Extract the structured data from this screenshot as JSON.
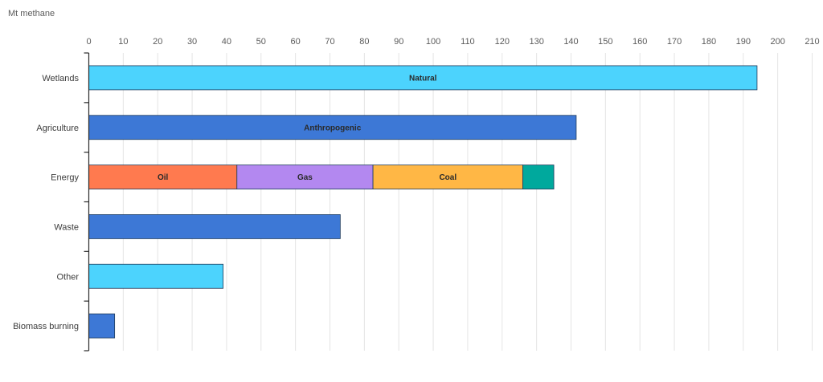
{
  "chart_data": {
    "type": "bar",
    "orientation": "horizontal",
    "stacked": true,
    "xlabel": "Mt methane",
    "xlim": [
      0,
      210
    ],
    "x_ticks": [
      0,
      10,
      20,
      30,
      40,
      50,
      60,
      70,
      80,
      90,
      100,
      110,
      120,
      130,
      140,
      150,
      160,
      170,
      180,
      190,
      200,
      210
    ],
    "grid": "vertical",
    "categories": [
      "Wetlands",
      "Agriculture",
      "Energy",
      "Waste",
      "Other",
      "Biomass burning"
    ],
    "bars": [
      {
        "category": "Wetlands",
        "segments": [
          {
            "label": "Natural",
            "value": 194,
            "color": "#4cd3fd"
          }
        ]
      },
      {
        "category": "Agriculture",
        "segments": [
          {
            "label": "Anthropogenic",
            "value": 141.5,
            "color": "#3d78d6"
          }
        ]
      },
      {
        "category": "Energy",
        "segments": [
          {
            "label": "Oil",
            "value": 43,
            "color": "#ff7a4f"
          },
          {
            "label": "Gas",
            "value": 39.5,
            "color": "#b388f0"
          },
          {
            "label": "Coal",
            "value": 43.5,
            "color": "#ffb745"
          },
          {
            "label": "",
            "value": 9,
            "color": "#00a99d"
          }
        ]
      },
      {
        "category": "Waste",
        "segments": [
          {
            "label": "",
            "value": 73,
            "color": "#3d78d6"
          }
        ]
      },
      {
        "category": "Other",
        "segments": [
          {
            "label": "",
            "value": 39,
            "color": "#4cd3fd"
          }
        ]
      },
      {
        "category": "Biomass burning",
        "segments": [
          {
            "label": "",
            "value": 7.5,
            "color": "#3d78d6"
          }
        ]
      }
    ]
  }
}
